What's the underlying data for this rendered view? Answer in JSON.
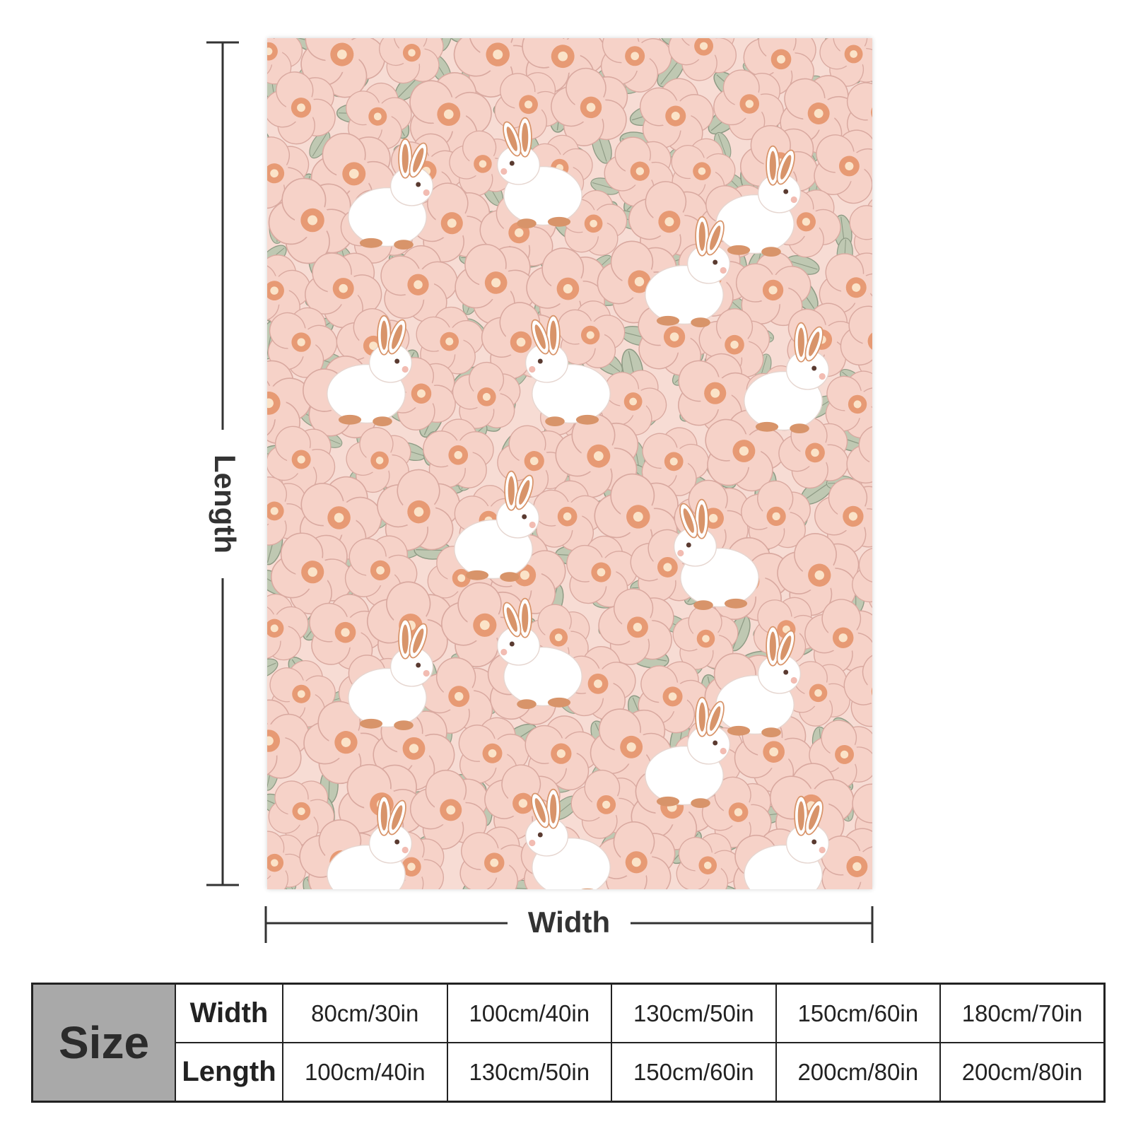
{
  "dimensions": {
    "length_label": "Length",
    "width_label": "Width"
  },
  "blanket": {
    "pattern": "pink floral with white rabbits",
    "colors": {
      "background": "#f7dcd4",
      "petal": "#f6d2c8",
      "flower_center": "#e79a74",
      "leaf": "#bfc8b2",
      "rabbit": "#ffffff",
      "rabbit_ear": "#d8946a"
    }
  },
  "size_table": {
    "size_label": "Size",
    "width_label": "Width",
    "length_label": "Length",
    "widths": [
      "80cm/30in",
      "100cm/40in",
      "130cm/50in",
      "150cm/60in",
      "180cm/70in"
    ],
    "lengths": [
      "100cm/40in",
      "130cm/50in",
      "150cm/60in",
      "200cm/80in",
      "200cm/80in"
    ]
  }
}
